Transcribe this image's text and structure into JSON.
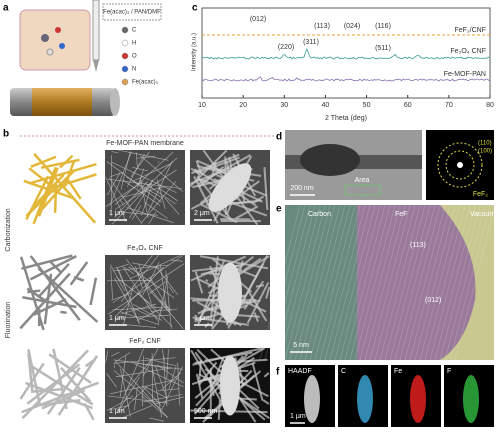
{
  "panels": {
    "a": {
      "label": "a",
      "box": "Fe(acac)₃ / PAN/DMF",
      "legend": [
        "C",
        "H",
        "O",
        "N",
        "Fe(acac)₃"
      ]
    },
    "b": {
      "label": "b",
      "rows": [
        "Fe-MOF-PAN membrane",
        "Fe₃O₄ CNF",
        "FeF₂ CNF"
      ],
      "steps": [
        "Carbonization",
        "Fluorination"
      ],
      "scales": [
        "1 μm",
        "2 μm",
        "1 μm",
        "1 μm",
        "1 μm",
        "500 nm"
      ]
    },
    "c": {
      "label": "c",
      "xlabel": "2 Theta (deg)",
      "ylabel": "Intensity (a.u.)",
      "xlim": [
        10,
        80
      ],
      "xticks": [
        10,
        20,
        30,
        40,
        50,
        60,
        70,
        80
      ],
      "series": [
        {
          "name": "FeF₂/CNF",
          "color": "#f0a030"
        },
        {
          "name": "Fe₃O₄ CNF",
          "color": "#3a9a9a"
        },
        {
          "name": "Fe-MOF-PAN",
          "color": "#8a70b0"
        }
      ],
      "peaks": [
        "(012)",
        "(113)",
        "(024)",
        "(116)",
        "(220)",
        "(311)",
        "(511)"
      ]
    },
    "d": {
      "label": "d",
      "scale": "200 nm",
      "area": "Area",
      "rings": [
        "(110)",
        "(100)"
      ],
      "phase": "FeF₂"
    },
    "e": {
      "label": "e",
      "regions": [
        "Carbon",
        "FeF",
        "Vacuum"
      ],
      "planes": [
        "(113)",
        "(012)"
      ],
      "scale": "5 nm"
    },
    "f": {
      "label": "f",
      "maps": [
        "HAADF",
        "C",
        "Fe",
        "F"
      ],
      "scale": "1 μm"
    }
  }
}
